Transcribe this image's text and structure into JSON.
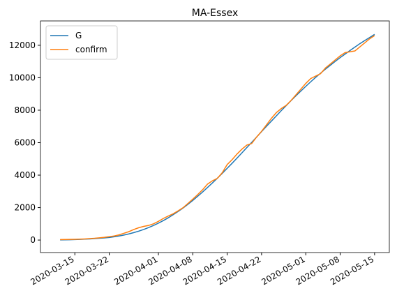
{
  "chart_data": {
    "type": "line",
    "title": "MA-Essex",
    "x": [
      "2020-03-12",
      "2020-03-13",
      "2020-03-14",
      "2020-03-15",
      "2020-03-16",
      "2020-03-17",
      "2020-03-18",
      "2020-03-19",
      "2020-03-20",
      "2020-03-21",
      "2020-03-22",
      "2020-03-23",
      "2020-03-24",
      "2020-03-25",
      "2020-03-26",
      "2020-03-27",
      "2020-03-28",
      "2020-03-29",
      "2020-03-30",
      "2020-03-31",
      "2020-04-01",
      "2020-04-02",
      "2020-04-03",
      "2020-04-04",
      "2020-04-05",
      "2020-04-06",
      "2020-04-07",
      "2020-04-08",
      "2020-04-09",
      "2020-04-10",
      "2020-04-11",
      "2020-04-12",
      "2020-04-13",
      "2020-04-14",
      "2020-04-15",
      "2020-04-16",
      "2020-04-17",
      "2020-04-18",
      "2020-04-19",
      "2020-04-20",
      "2020-04-21",
      "2020-04-22",
      "2020-04-23",
      "2020-04-24",
      "2020-04-25",
      "2020-04-26",
      "2020-04-27",
      "2020-04-28",
      "2020-04-29",
      "2020-04-30",
      "2020-05-01",
      "2020-05-02",
      "2020-05-03",
      "2020-05-04",
      "2020-05-05",
      "2020-05-06",
      "2020-05-07",
      "2020-05-08",
      "2020-05-09",
      "2020-05-10",
      "2020-05-11",
      "2020-05-12",
      "2020-05-13",
      "2020-05-14",
      "2020-05-15"
    ],
    "series": [
      {
        "name": "G",
        "color": "#1f77b4",
        "values": [
          10,
          15,
          20,
          30,
          40,
          55,
          70,
          90,
          110,
          130,
          160,
          200,
          250,
          310,
          380,
          460,
          550,
          650,
          770,
          900,
          1040,
          1200,
          1370,
          1560,
          1760,
          1970,
          2200,
          2440,
          2700,
          2960,
          3240,
          3520,
          3810,
          4110,
          4420,
          4730,
          5050,
          5370,
          5700,
          6020,
          6350,
          6680,
          7010,
          7330,
          7650,
          7970,
          8280,
          8590,
          8890,
          9180,
          9470,
          9750,
          10020,
          10280,
          10530,
          10770,
          11010,
          11240,
          11460,
          11680,
          11890,
          12100,
          12290,
          12480,
          12670
        ]
      },
      {
        "name": "confirm",
        "color": "#ff7f0e",
        "values": [
          30,
          35,
          40,
          45,
          55,
          70,
          90,
          110,
          140,
          170,
          210,
          250,
          320,
          420,
          520,
          650,
          760,
          840,
          900,
          1000,
          1150,
          1330,
          1480,
          1620,
          1800,
          1990,
          2250,
          2520,
          2800,
          3100,
          3450,
          3650,
          3800,
          4150,
          4650,
          4950,
          5300,
          5600,
          5850,
          5950,
          6350,
          6700,
          7100,
          7500,
          7850,
          8100,
          8300,
          8600,
          8950,
          9300,
          9650,
          9950,
          10100,
          10250,
          10600,
          10850,
          11100,
          11350,
          11550,
          11600,
          11650,
          11900,
          12150,
          12400,
          12600
        ]
      }
    ],
    "xlim": [
      "2020-03-08",
      "2020-05-18"
    ],
    "xticks": [
      "2020-03-15",
      "2020-03-22",
      "2020-04-01",
      "2020-04-08",
      "2020-04-15",
      "2020-04-22",
      "2020-05-01",
      "2020-05-08",
      "2020-05-15"
    ],
    "ylim": [
      -770,
      13500
    ],
    "yticks": [
      0,
      2000,
      4000,
      6000,
      8000,
      10000,
      12000
    ],
    "legend": "upper left",
    "grid": false
  }
}
